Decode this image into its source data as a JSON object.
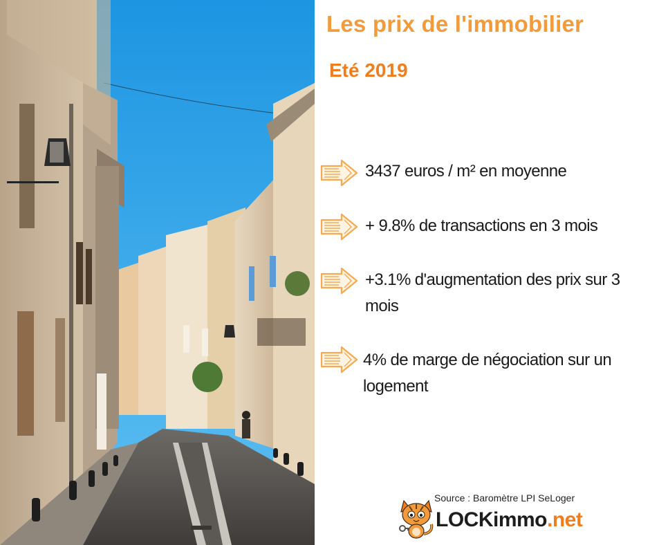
{
  "header": {
    "title": "Les prix de l'immobilier",
    "subtitle": "Eté 2019"
  },
  "facts": [
    {
      "text": "3437 euros / m² en moyenne",
      "icon": "arrow-right-icon"
    },
    {
      "text": "+ 9.8% de transactions en 3 mois",
      "icon": "arrow-right-icon"
    },
    {
      "text": "+3.1% d'augmentation des prix sur 3 mois",
      "icon": "arrow-right-icon"
    },
    {
      "text": "4% de marge de négociation sur un logement",
      "icon": "arrow-right-icon"
    }
  ],
  "footer": {
    "source": "Source : Baromètre LPI SeLoger",
    "brand_main": "LOCKimmo",
    "brand_tld": ".net",
    "logo_icon": "cat-mascot-icon"
  },
  "colors": {
    "accent": "#f39a3a",
    "accent_dark": "#f07d1e",
    "text": "#1a1a1a",
    "sky": "#2fa3e6"
  }
}
